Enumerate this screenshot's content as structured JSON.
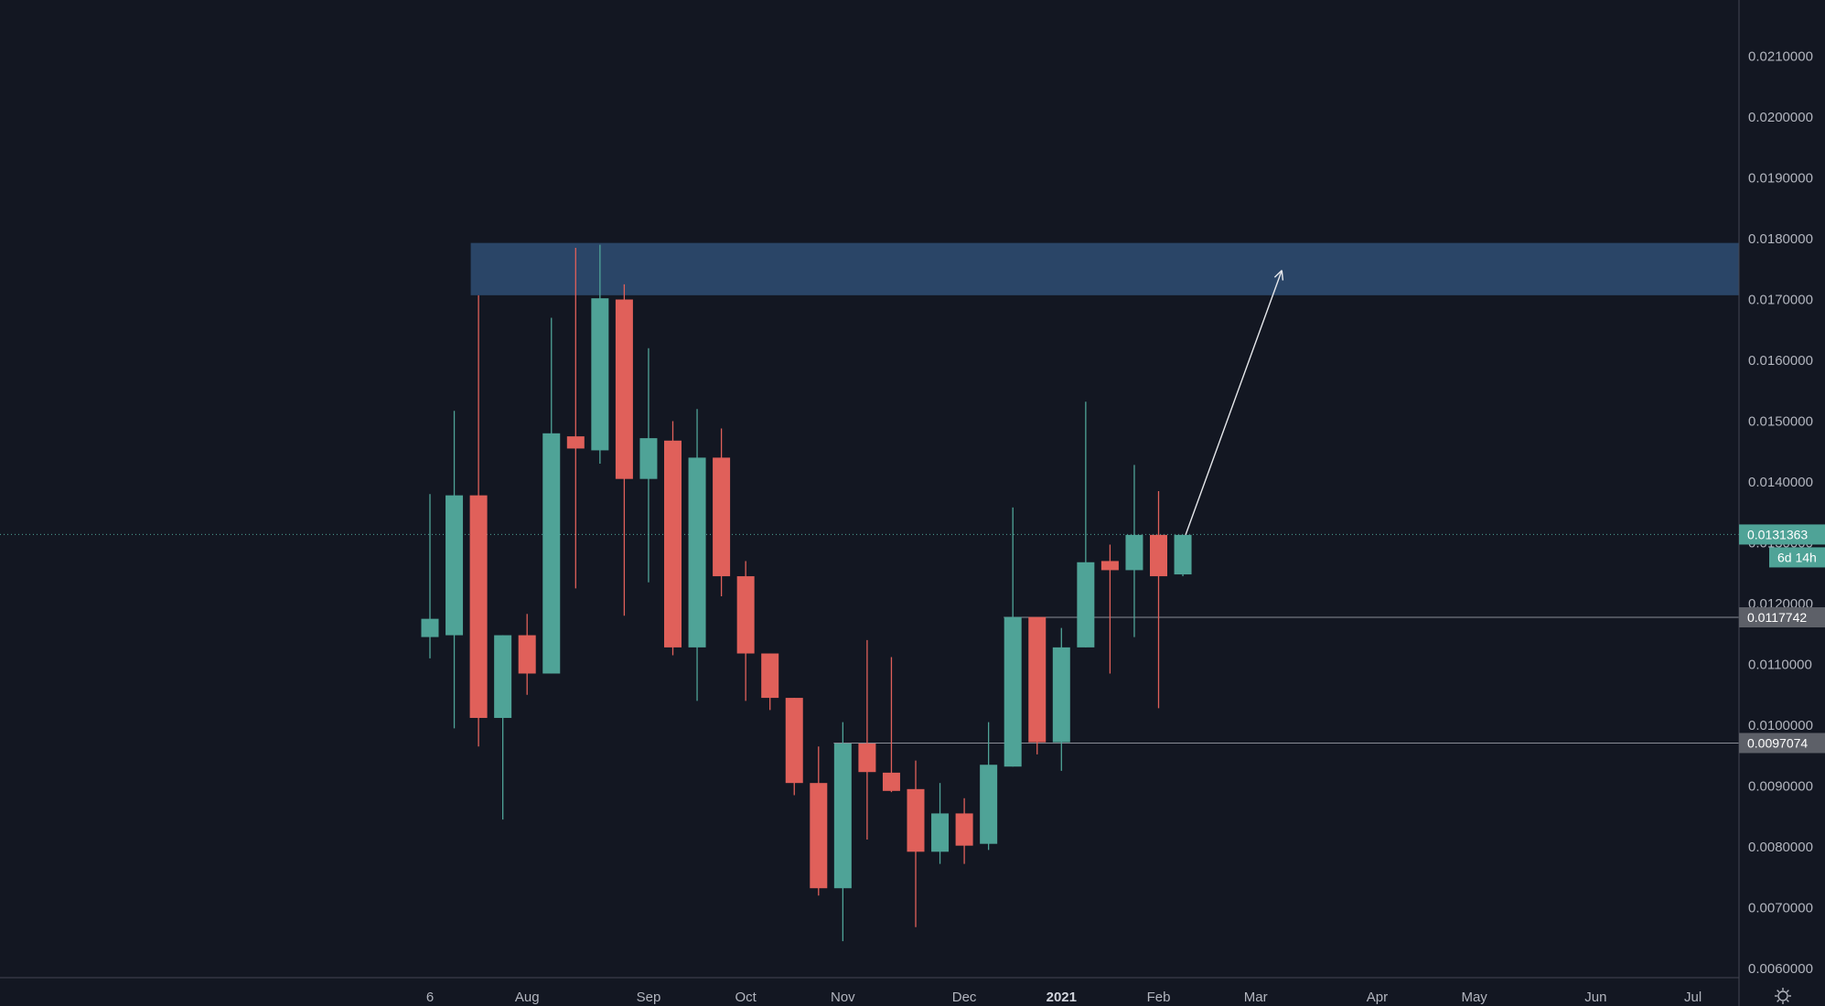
{
  "colors": {
    "background": "#131722",
    "up": "#4fa397",
    "down": "#e0605a",
    "zone": "#2c4a6e",
    "axis_text": "#b2b5be",
    "level_line": "#8a8d96",
    "level_tag": "#5d6068",
    "arrow": "#e6e8ec"
  },
  "settings_icon": "gear-icon",
  "price_tags": {
    "current": "0.0131363",
    "countdown": "6d 14h",
    "level1": "0.0117742",
    "level2": "0.0097074"
  },
  "chart_data": {
    "type": "candlestick",
    "y_axis": {
      "range": [
        0.0056,
        0.0222
      ],
      "ticks": [
        "0.0060000",
        "0.0070000",
        "0.0080000",
        "0.0090000",
        "0.0100000",
        "0.0110000",
        "0.0120000",
        "0.0130000",
        "0.0140000",
        "0.0150000",
        "0.0160000",
        "0.0170000",
        "0.0180000",
        "0.0190000",
        "0.0200000",
        "0.0210000"
      ],
      "side": "right"
    },
    "x_axis": {
      "labels": [
        {
          "text": "6",
          "week": 0,
          "bold": false
        },
        {
          "text": "Aug",
          "week": 4,
          "bold": false
        },
        {
          "text": "Sep",
          "week": 9,
          "bold": false
        },
        {
          "text": "Oct",
          "week": 13,
          "bold": false
        },
        {
          "text": "Nov",
          "week": 17,
          "bold": false
        },
        {
          "text": "Dec",
          "week": 22,
          "bold": false
        },
        {
          "text": "2021",
          "week": 26,
          "bold": true
        },
        {
          "text": "Feb",
          "week": 30,
          "bold": false
        },
        {
          "text": "Mar",
          "week": 34,
          "bold": false
        },
        {
          "text": "Apr",
          "week": 39,
          "bold": false
        },
        {
          "text": "May",
          "week": 43,
          "bold": false
        },
        {
          "text": "Jun",
          "week": 48,
          "bold": false
        },
        {
          "text": "Jul",
          "week": 52,
          "bold": false
        }
      ]
    },
    "candles": [
      {
        "week": 0,
        "o": 0.01145,
        "h": 0.0138,
        "l": 0.0111,
        "c": 0.01175
      },
      {
        "week": 1,
        "o": 0.01148,
        "h": 0.01517,
        "l": 0.00995,
        "c": 0.01378
      },
      {
        "week": 2,
        "o": 0.01378,
        "h": 0.01707,
        "l": 0.00965,
        "c": 0.01012
      },
      {
        "week": 3,
        "o": 0.01012,
        "h": 0.01148,
        "l": 0.00845,
        "c": 0.01148
      },
      {
        "week": 4,
        "o": 0.01148,
        "h": 0.01183,
        "l": 0.0105,
        "c": 0.01085
      },
      {
        "week": 5,
        "o": 0.01085,
        "h": 0.0167,
        "l": 0.01085,
        "c": 0.0148
      },
      {
        "week": 6,
        "o": 0.01475,
        "h": 0.01785,
        "l": 0.01225,
        "c": 0.01455
      },
      {
        "week": 7,
        "o": 0.01452,
        "h": 0.0179,
        "l": 0.0143,
        "c": 0.01702
      },
      {
        "week": 8,
        "o": 0.017,
        "h": 0.01725,
        "l": 0.0118,
        "c": 0.01405
      },
      {
        "week": 9,
        "o": 0.01405,
        "h": 0.0162,
        "l": 0.01235,
        "c": 0.01472
      },
      {
        "week": 10,
        "o": 0.01468,
        "h": 0.015,
        "l": 0.01115,
        "c": 0.01128
      },
      {
        "week": 11,
        "o": 0.01128,
        "h": 0.0152,
        "l": 0.0104,
        "c": 0.0144
      },
      {
        "week": 12,
        "o": 0.0144,
        "h": 0.01488,
        "l": 0.01212,
        "c": 0.01245
      },
      {
        "week": 13,
        "o": 0.01245,
        "h": 0.0127,
        "l": 0.0104,
        "c": 0.01118
      },
      {
        "week": 14,
        "o": 0.01118,
        "h": 0.01118,
        "l": 0.01025,
        "c": 0.01045
      },
      {
        "week": 15,
        "o": 0.01045,
        "h": 0.01045,
        "l": 0.00885,
        "c": 0.00905
      },
      {
        "week": 16,
        "o": 0.00905,
        "h": 0.00965,
        "l": 0.0072,
        "c": 0.00732
      },
      {
        "week": 17,
        "o": 0.00732,
        "h": 0.01005,
        "l": 0.00645,
        "c": 0.0097
      },
      {
        "week": 18,
        "o": 0.0097,
        "h": 0.0114,
        "l": 0.00812,
        "c": 0.00923
      },
      {
        "week": 19,
        "o": 0.00922,
        "h": 0.01112,
        "l": 0.0089,
        "c": 0.00892
      },
      {
        "week": 20,
        "o": 0.00895,
        "h": 0.00942,
        "l": 0.00668,
        "c": 0.00792
      },
      {
        "week": 21,
        "o": 0.00792,
        "h": 0.00905,
        "l": 0.00772,
        "c": 0.00855
      },
      {
        "week": 22,
        "o": 0.00855,
        "h": 0.0088,
        "l": 0.00772,
        "c": 0.00802
      },
      {
        "week": 23,
        "o": 0.00805,
        "h": 0.01005,
        "l": 0.00795,
        "c": 0.00935
      },
      {
        "week": 24,
        "o": 0.00932,
        "h": 0.01358,
        "l": 0.00932,
        "c": 0.01178
      },
      {
        "week": 25,
        "o": 0.01178,
        "h": 0.01178,
        "l": 0.00952,
        "c": 0.00972
      },
      {
        "week": 26,
        "o": 0.00972,
        "h": 0.0116,
        "l": 0.00925,
        "c": 0.01128
      },
      {
        "week": 27,
        "o": 0.01128,
        "h": 0.01532,
        "l": 0.01128,
        "c": 0.01268
      },
      {
        "week": 28,
        "o": 0.0127,
        "h": 0.01297,
        "l": 0.01085,
        "c": 0.01255
      },
      {
        "week": 29,
        "o": 0.01255,
        "h": 0.01428,
        "l": 0.01145,
        "c": 0.01313
      },
      {
        "week": 30,
        "o": 0.01313,
        "h": 0.01385,
        "l": 0.01028,
        "c": 0.01245
      },
      {
        "week": 31,
        "o": 0.01248,
        "h": 0.01313,
        "l": 0.01245,
        "c": 0.01313
      }
    ],
    "zone": {
      "from_week": 2,
      "y_low": 0.01707,
      "y_high": 0.01793
    },
    "horizontal_levels": [
      0.0117742,
      0.0097074
    ],
    "current_price": 0.0131363,
    "arrow": {
      "from": {
        "week": 31,
        "y": 0.01313
      },
      "to": {
        "week": 35,
        "y": 0.01748
      }
    }
  }
}
